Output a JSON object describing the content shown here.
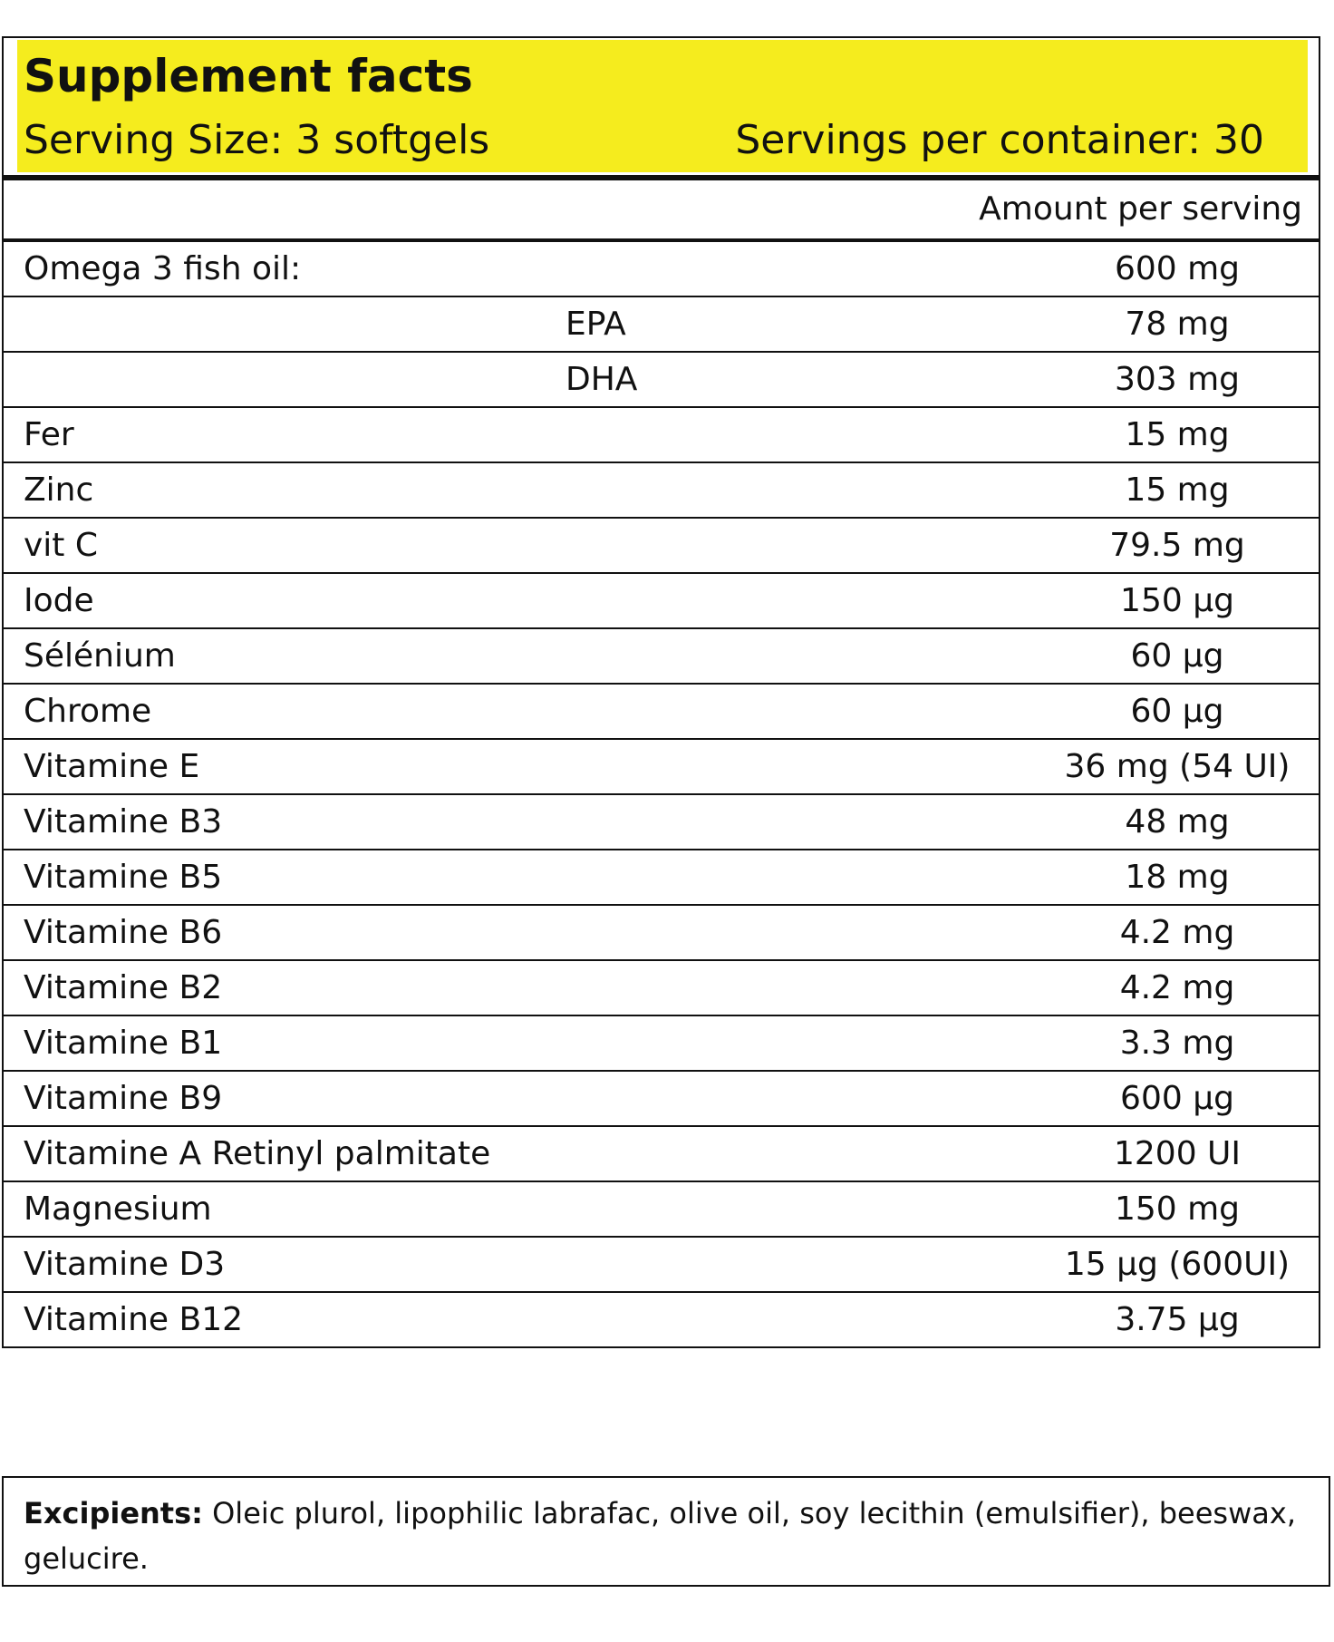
{
  "header": {
    "title": "Supplement facts",
    "serving_size": "Serving Size: 3 softgels",
    "servings_per_container": "Servings per container: 30",
    "highlight_color": "#f5ec1e"
  },
  "amount_header": "Amount per serving",
  "nutrients": [
    {
      "name": "Omega 3 fish oil:",
      "amount": "600 mg"
    },
    {
      "name": "EPA",
      "amount": "78 mg",
      "indented": true
    },
    {
      "name": "DHA",
      "amount": "303 mg",
      "indented": true
    },
    {
      "name": "Fer",
      "amount": "15 mg"
    },
    {
      "name": "Zinc",
      "amount": "15 mg"
    },
    {
      "name": "vit C",
      "amount": "79.5 mg"
    },
    {
      "name": "Iode",
      "amount": "150 µg"
    },
    {
      "name": "Sélénium",
      "amount": "60 µg"
    },
    {
      "name": "Chrome",
      "amount": "60 µg"
    },
    {
      "name": "Vitamine E",
      "amount": "36 mg  (54 UI)"
    },
    {
      "name": "Vitamine B3",
      "amount": "48 mg"
    },
    {
      "name": "Vitamine B5",
      "amount": "18 mg"
    },
    {
      "name": "Vitamine B6",
      "amount": "4.2 mg"
    },
    {
      "name": "Vitamine B2",
      "amount": "4.2 mg"
    },
    {
      "name": "Vitamine B1",
      "amount": "3.3 mg"
    },
    {
      "name": "Vitamine B9",
      "amount": "600 µg"
    },
    {
      "name": "Vitamine A Retinyl palmitate",
      "amount": "1200 UI"
    },
    {
      "name": "Magnesium",
      "amount": "150 mg"
    },
    {
      "name": "Vitamine D3",
      "amount": "15 µg (600UI)"
    },
    {
      "name": "Vitamine B12",
      "amount": "3.75 µg"
    }
  ],
  "excipients": {
    "label": "Excipients:",
    "text": " Oleic plurol, lipophilic labrafac, olive oil, soy lecithin (emulsifier), beeswax, gelucire."
  }
}
